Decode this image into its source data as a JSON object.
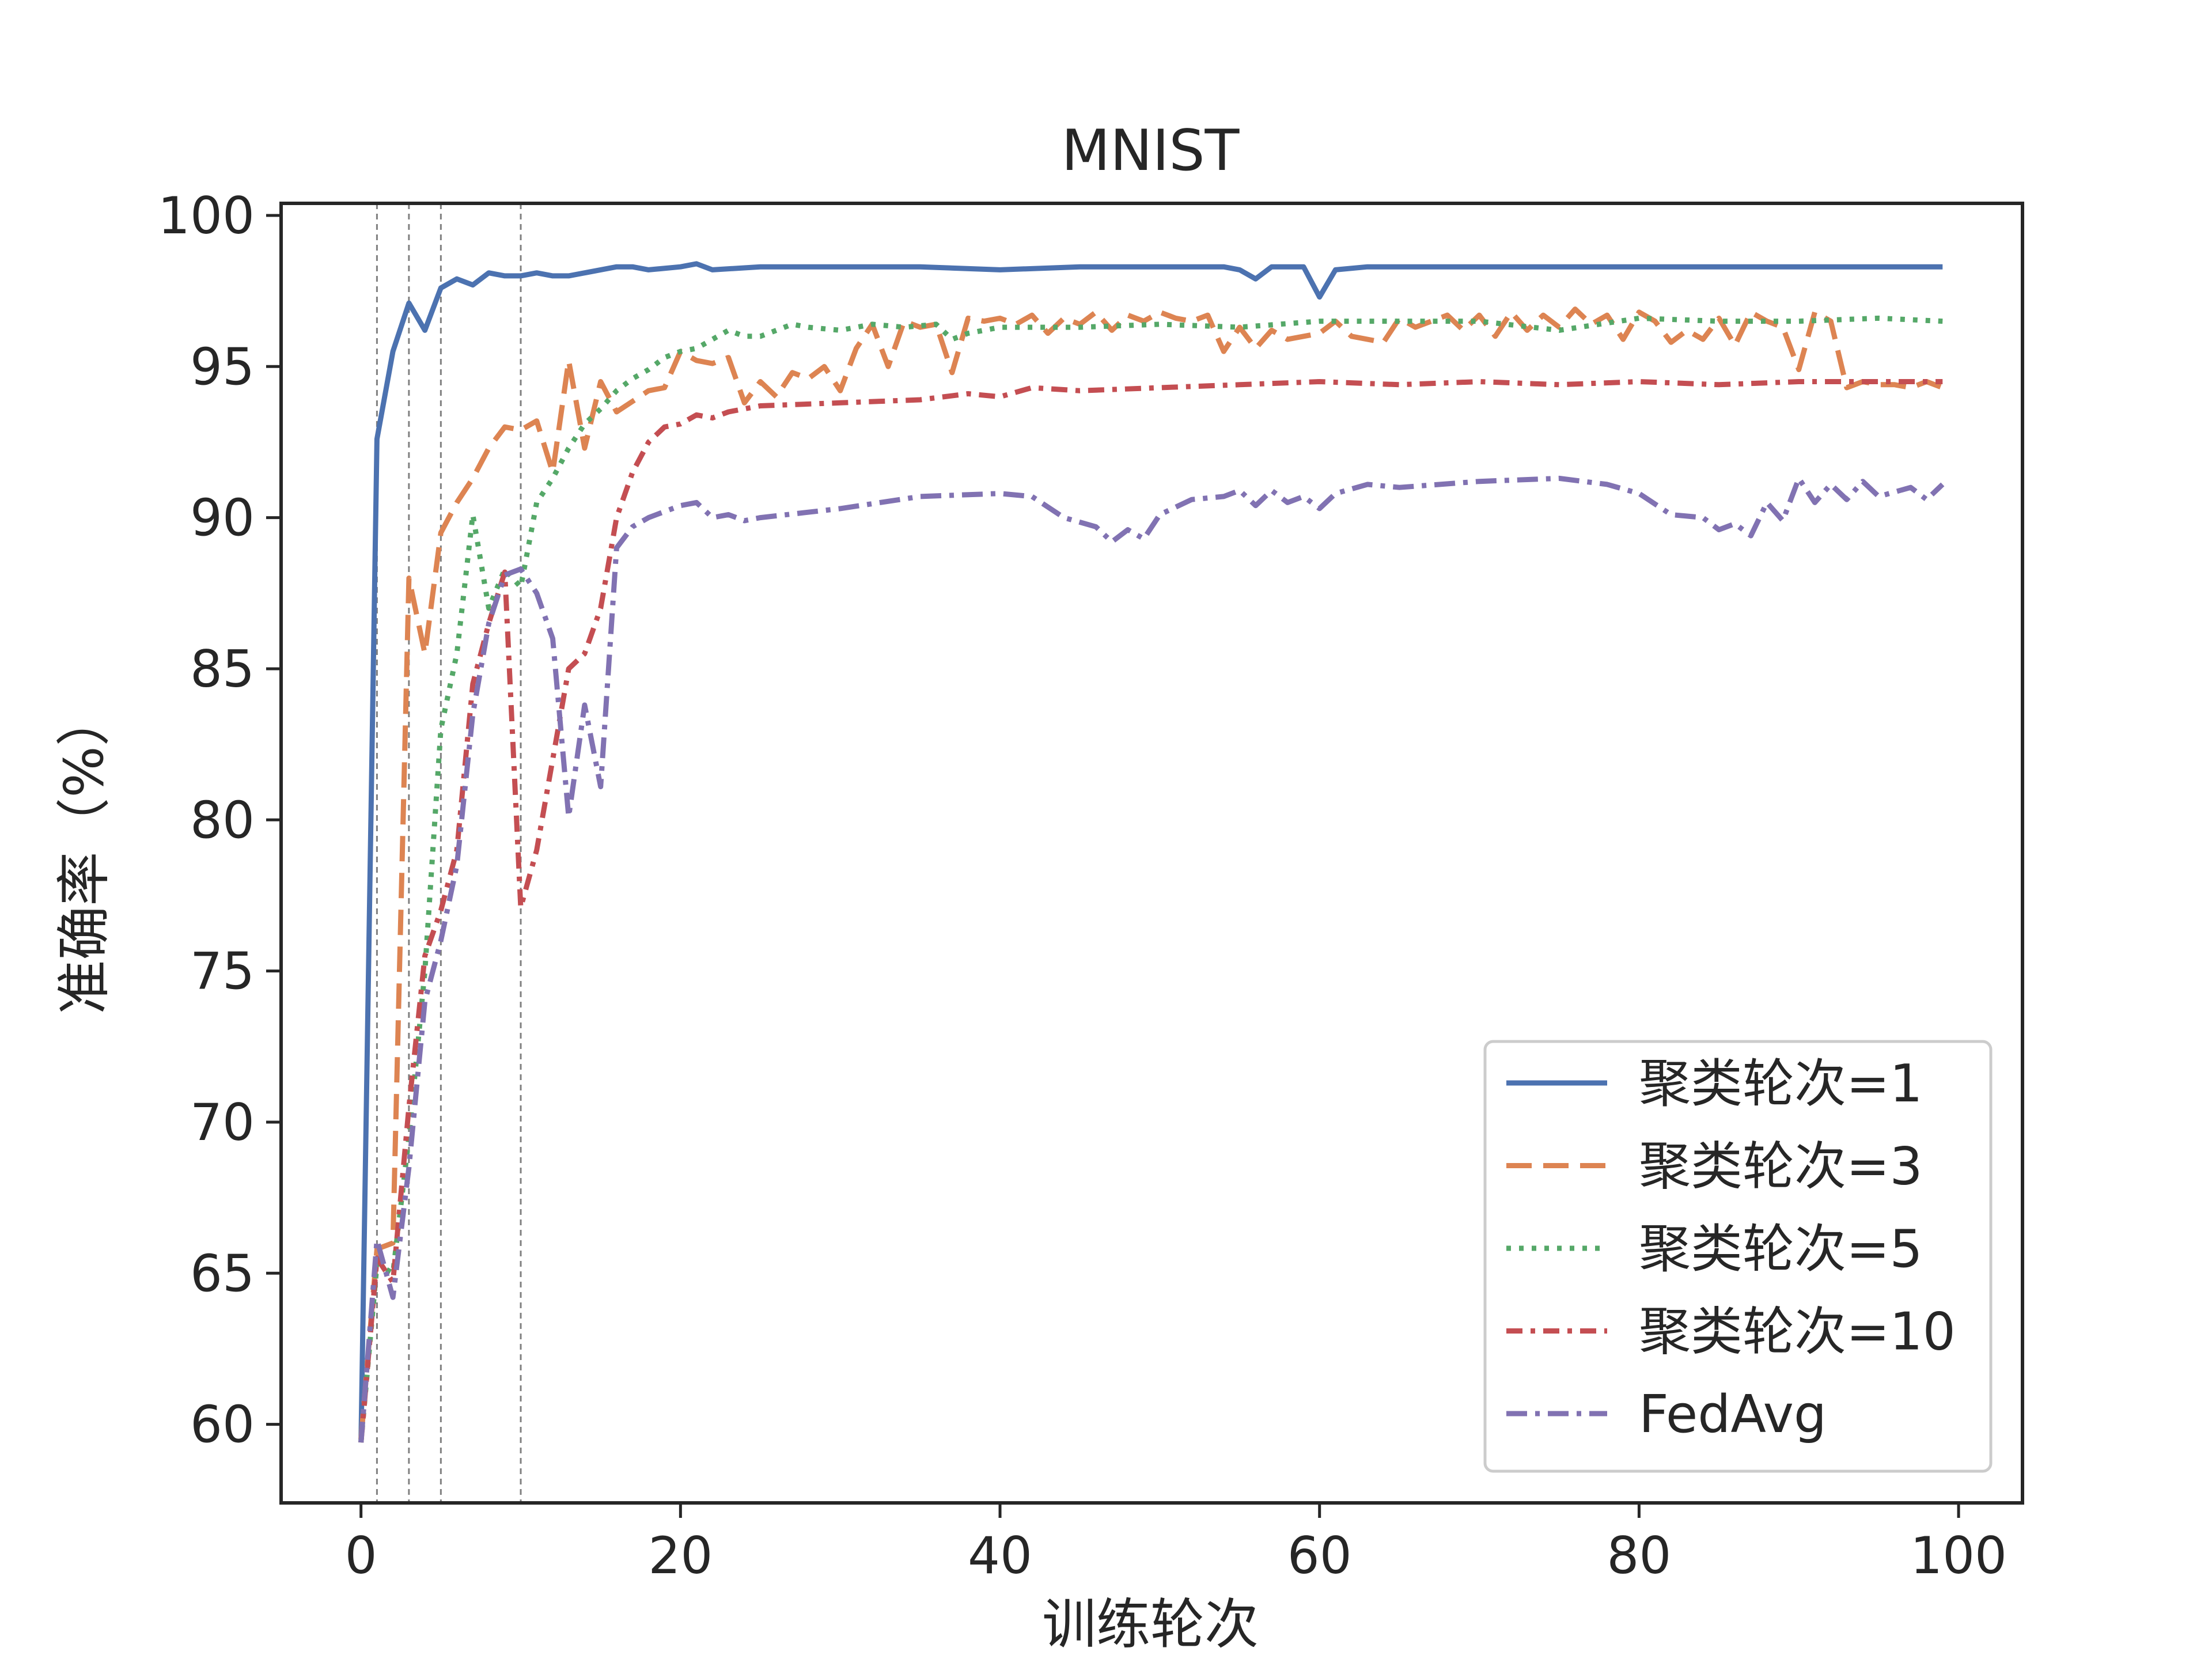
{
  "chart_data": {
    "type": "line",
    "title": "MNIST",
    "xlabel": "训练轮次",
    "ylabel": "准确率（%）",
    "xlim": [
      -5,
      104
    ],
    "ylim": [
      57.4,
      100.4
    ],
    "xticks": [
      0,
      20,
      40,
      60,
      80,
      100
    ],
    "yticks": [
      60,
      65,
      70,
      75,
      80,
      85,
      90,
      95,
      100
    ],
    "grid": false,
    "vlines": [
      1,
      3,
      5,
      10
    ],
    "legend_position": "lower-right",
    "series": [
      {
        "name": "聚类轮次=1",
        "color": "#4c72b0",
        "style": "solid",
        "points": [
          [
            0,
            59.4
          ],
          [
            1,
            92.6
          ],
          [
            2,
            95.5
          ],
          [
            3,
            97.1
          ],
          [
            4,
            96.2
          ],
          [
            5,
            97.6
          ],
          [
            6,
            97.9
          ],
          [
            7,
            97.7
          ],
          [
            8,
            98.1
          ],
          [
            9,
            98.0
          ],
          [
            10,
            98.0
          ],
          [
            11,
            98.1
          ],
          [
            12,
            98.0
          ],
          [
            13,
            98.0
          ],
          [
            14,
            98.1
          ],
          [
            15,
            98.2
          ],
          [
            16,
            98.3
          ],
          [
            17,
            98.3
          ],
          [
            18,
            98.2
          ],
          [
            20,
            98.3
          ],
          [
            21,
            98.4
          ],
          [
            22,
            98.2
          ],
          [
            25,
            98.3
          ],
          [
            30,
            98.3
          ],
          [
            35,
            98.3
          ],
          [
            40,
            98.2
          ],
          [
            45,
            98.3
          ],
          [
            50,
            98.3
          ],
          [
            54,
            98.3
          ],
          [
            55,
            98.2
          ],
          [
            56,
            97.9
          ],
          [
            57,
            98.3
          ],
          [
            59,
            98.3
          ],
          [
            60,
            97.3
          ],
          [
            61,
            98.2
          ],
          [
            63,
            98.3
          ],
          [
            70,
            98.3
          ],
          [
            80,
            98.3
          ],
          [
            90,
            98.3
          ],
          [
            99,
            98.3
          ]
        ]
      },
      {
        "name": "聚类轮次=3",
        "color": "#dd8452",
        "style": "dashed",
        "points": [
          [
            0,
            59.5
          ],
          [
            1,
            65.8
          ],
          [
            2,
            66.0
          ],
          [
            3,
            88.0
          ],
          [
            4,
            85.5
          ],
          [
            5,
            89.5
          ],
          [
            6,
            90.5
          ],
          [
            7,
            91.3
          ],
          [
            8,
            92.3
          ],
          [
            9,
            93.0
          ],
          [
            10,
            92.9
          ],
          [
            11,
            93.2
          ],
          [
            12,
            91.5
          ],
          [
            13,
            95.2
          ],
          [
            14,
            92.3
          ],
          [
            15,
            94.5
          ],
          [
            16,
            93.5
          ],
          [
            18,
            94.2
          ],
          [
            19,
            94.3
          ],
          [
            20,
            95.5
          ],
          [
            21,
            95.2
          ],
          [
            22,
            95.1
          ],
          [
            23,
            95.3
          ],
          [
            24,
            93.8
          ],
          [
            25,
            94.5
          ],
          [
            26,
            94.0
          ],
          [
            27,
            94.8
          ],
          [
            28,
            94.6
          ],
          [
            29,
            95.0
          ],
          [
            30,
            94.2
          ],
          [
            31,
            95.6
          ],
          [
            32,
            96.4
          ],
          [
            33,
            95.0
          ],
          [
            34,
            96.5
          ],
          [
            35,
            96.3
          ],
          [
            36,
            96.4
          ],
          [
            37,
            94.8
          ],
          [
            38,
            96.6
          ],
          [
            39,
            96.5
          ],
          [
            40,
            96.6
          ],
          [
            41,
            96.4
          ],
          [
            42,
            96.7
          ],
          [
            43,
            96.1
          ],
          [
            44,
            96.6
          ],
          [
            45,
            96.4
          ],
          [
            46,
            96.8
          ],
          [
            47,
            96.2
          ],
          [
            48,
            96.7
          ],
          [
            49,
            96.5
          ],
          [
            50,
            96.8
          ],
          [
            51,
            96.6
          ],
          [
            52,
            96.5
          ],
          [
            53,
            96.7
          ],
          [
            54,
            95.5
          ],
          [
            55,
            96.3
          ],
          [
            56,
            95.6
          ],
          [
            57,
            96.2
          ],
          [
            58,
            95.9
          ],
          [
            60,
            96.1
          ],
          [
            61,
            96.5
          ],
          [
            62,
            96.0
          ],
          [
            64,
            95.8
          ],
          [
            65,
            96.6
          ],
          [
            66,
            96.3
          ],
          [
            67,
            96.5
          ],
          [
            68,
            96.7
          ],
          [
            69,
            96.2
          ],
          [
            70,
            96.7
          ],
          [
            71,
            96.0
          ],
          [
            72,
            96.8
          ],
          [
            73,
            96.2
          ],
          [
            74,
            96.7
          ],
          [
            75,
            96.3
          ],
          [
            76,
            96.9
          ],
          [
            77,
            96.4
          ],
          [
            78,
            96.7
          ],
          [
            79,
            95.9
          ],
          [
            80,
            96.8
          ],
          [
            81,
            96.5
          ],
          [
            82,
            95.8
          ],
          [
            83,
            96.2
          ],
          [
            84,
            95.9
          ],
          [
            85,
            96.6
          ],
          [
            86,
            95.7
          ],
          [
            87,
            96.8
          ],
          [
            88,
            96.5
          ],
          [
            89,
            96.3
          ],
          [
            90,
            94.9
          ],
          [
            91,
            96.8
          ],
          [
            92,
            96.5
          ],
          [
            93,
            94.3
          ],
          [
            94,
            94.5
          ],
          [
            95,
            94.4
          ],
          [
            96,
            94.4
          ],
          [
            97,
            94.3
          ],
          [
            98,
            94.5
          ],
          [
            99,
            94.3
          ]
        ]
      },
      {
        "name": "聚类轮次=5",
        "color": "#55a868",
        "style": "dotted",
        "points": [
          [
            0,
            59.4
          ],
          [
            1,
            65.3
          ],
          [
            2,
            65.0
          ],
          [
            3,
            69.5
          ],
          [
            4,
            75.0
          ],
          [
            5,
            83.0
          ],
          [
            6,
            85.5
          ],
          [
            7,
            90.1
          ],
          [
            8,
            87.0
          ],
          [
            9,
            88.3
          ],
          [
            10,
            87.7
          ],
          [
            11,
            90.5
          ],
          [
            12,
            91.3
          ],
          [
            13,
            92.3
          ],
          [
            14,
            93.1
          ],
          [
            15,
            93.6
          ],
          [
            16,
            94.2
          ],
          [
            17,
            94.6
          ],
          [
            18,
            94.9
          ],
          [
            19,
            95.3
          ],
          [
            20,
            95.5
          ],
          [
            21,
            95.6
          ],
          [
            22,
            95.9
          ],
          [
            23,
            96.2
          ],
          [
            24,
            96.0
          ],
          [
            25,
            96.0
          ],
          [
            26,
            96.2
          ],
          [
            27,
            96.4
          ],
          [
            28,
            96.3
          ],
          [
            30,
            96.2
          ],
          [
            32,
            96.4
          ],
          [
            34,
            96.3
          ],
          [
            36,
            96.4
          ],
          [
            37,
            95.9
          ],
          [
            38,
            96.1
          ],
          [
            40,
            96.3
          ],
          [
            45,
            96.3
          ],
          [
            50,
            96.4
          ],
          [
            55,
            96.3
          ],
          [
            60,
            96.5
          ],
          [
            65,
            96.5
          ],
          [
            70,
            96.5
          ],
          [
            75,
            96.2
          ],
          [
            80,
            96.6
          ],
          [
            85,
            96.5
          ],
          [
            90,
            96.5
          ],
          [
            95,
            96.6
          ],
          [
            99,
            96.5
          ]
        ]
      },
      {
        "name": "聚类轮次=10",
        "color": "#c44e52",
        "style": "dash-dot-dot",
        "points": [
          [
            0,
            59.4
          ],
          [
            1,
            65.5
          ],
          [
            2,
            64.7
          ],
          [
            3,
            70.5
          ],
          [
            4,
            75.5
          ],
          [
            5,
            77.0
          ],
          [
            6,
            79.0
          ],
          [
            7,
            84.5
          ],
          [
            8,
            86.5
          ],
          [
            9,
            88.2
          ],
          [
            10,
            77.1
          ],
          [
            11,
            79.0
          ],
          [
            12,
            82.0
          ],
          [
            13,
            85.0
          ],
          [
            14,
            85.5
          ],
          [
            15,
            87.0
          ],
          [
            16,
            90.0
          ],
          [
            17,
            91.5
          ],
          [
            18,
            92.5
          ],
          [
            19,
            93.0
          ],
          [
            20,
            93.1
          ],
          [
            21,
            93.4
          ],
          [
            22,
            93.3
          ],
          [
            23,
            93.5
          ],
          [
            25,
            93.7
          ],
          [
            30,
            93.8
          ],
          [
            35,
            93.9
          ],
          [
            38,
            94.1
          ],
          [
            40,
            94.0
          ],
          [
            42,
            94.3
          ],
          [
            45,
            94.2
          ],
          [
            50,
            94.3
          ],
          [
            55,
            94.4
          ],
          [
            60,
            94.5
          ],
          [
            65,
            94.4
          ],
          [
            70,
            94.5
          ],
          [
            75,
            94.4
          ],
          [
            80,
            94.5
          ],
          [
            85,
            94.4
          ],
          [
            90,
            94.5
          ],
          [
            95,
            94.5
          ],
          [
            99,
            94.5
          ]
        ]
      },
      {
        "name": "FedAvg",
        "color": "#8172b2",
        "style": "dash-dot",
        "points": [
          [
            0,
            59.4
          ],
          [
            1,
            66.1
          ],
          [
            2,
            64.2
          ],
          [
            3,
            68.5
          ],
          [
            4,
            74.0
          ],
          [
            5,
            76.0
          ],
          [
            6,
            78.5
          ],
          [
            7,
            83.5
          ],
          [
            8,
            86.5
          ],
          [
            9,
            88.1
          ],
          [
            10,
            88.3
          ],
          [
            11,
            87.5
          ],
          [
            12,
            86.0
          ],
          [
            13,
            80.1
          ],
          [
            14,
            83.8
          ],
          [
            15,
            81.1
          ],
          [
            16,
            89.0
          ],
          [
            17,
            89.7
          ],
          [
            18,
            90.0
          ],
          [
            19,
            90.2
          ],
          [
            20,
            90.4
          ],
          [
            21,
            90.5
          ],
          [
            22,
            90.0
          ],
          [
            23,
            90.1
          ],
          [
            24,
            89.9
          ],
          [
            25,
            90.0
          ],
          [
            30,
            90.3
          ],
          [
            35,
            90.7
          ],
          [
            40,
            90.8
          ],
          [
            42,
            90.7
          ],
          [
            44,
            90.0
          ],
          [
            46,
            89.7
          ],
          [
            47,
            89.2
          ],
          [
            48,
            89.6
          ],
          [
            49,
            89.3
          ],
          [
            50,
            90.1
          ],
          [
            52,
            90.6
          ],
          [
            54,
            90.7
          ],
          [
            55,
            90.9
          ],
          [
            56,
            90.4
          ],
          [
            57,
            90.9
          ],
          [
            58,
            90.5
          ],
          [
            59,
            90.7
          ],
          [
            60,
            90.3
          ],
          [
            61,
            90.8
          ],
          [
            63,
            91.1
          ],
          [
            65,
            91.0
          ],
          [
            70,
            91.2
          ],
          [
            75,
            91.3
          ],
          [
            78,
            91.1
          ],
          [
            80,
            90.8
          ],
          [
            82,
            90.1
          ],
          [
            84,
            90.0
          ],
          [
            85,
            89.6
          ],
          [
            86,
            89.8
          ],
          [
            87,
            89.4
          ],
          [
            88,
            90.5
          ],
          [
            89,
            89.9
          ],
          [
            90,
            91.3
          ],
          [
            91,
            90.5
          ],
          [
            92,
            91.1
          ],
          [
            93,
            90.6
          ],
          [
            94,
            91.2
          ],
          [
            95,
            90.7
          ],
          [
            97,
            91.0
          ],
          [
            98,
            90.6
          ],
          [
            99,
            91.1
          ]
        ]
      }
    ]
  }
}
